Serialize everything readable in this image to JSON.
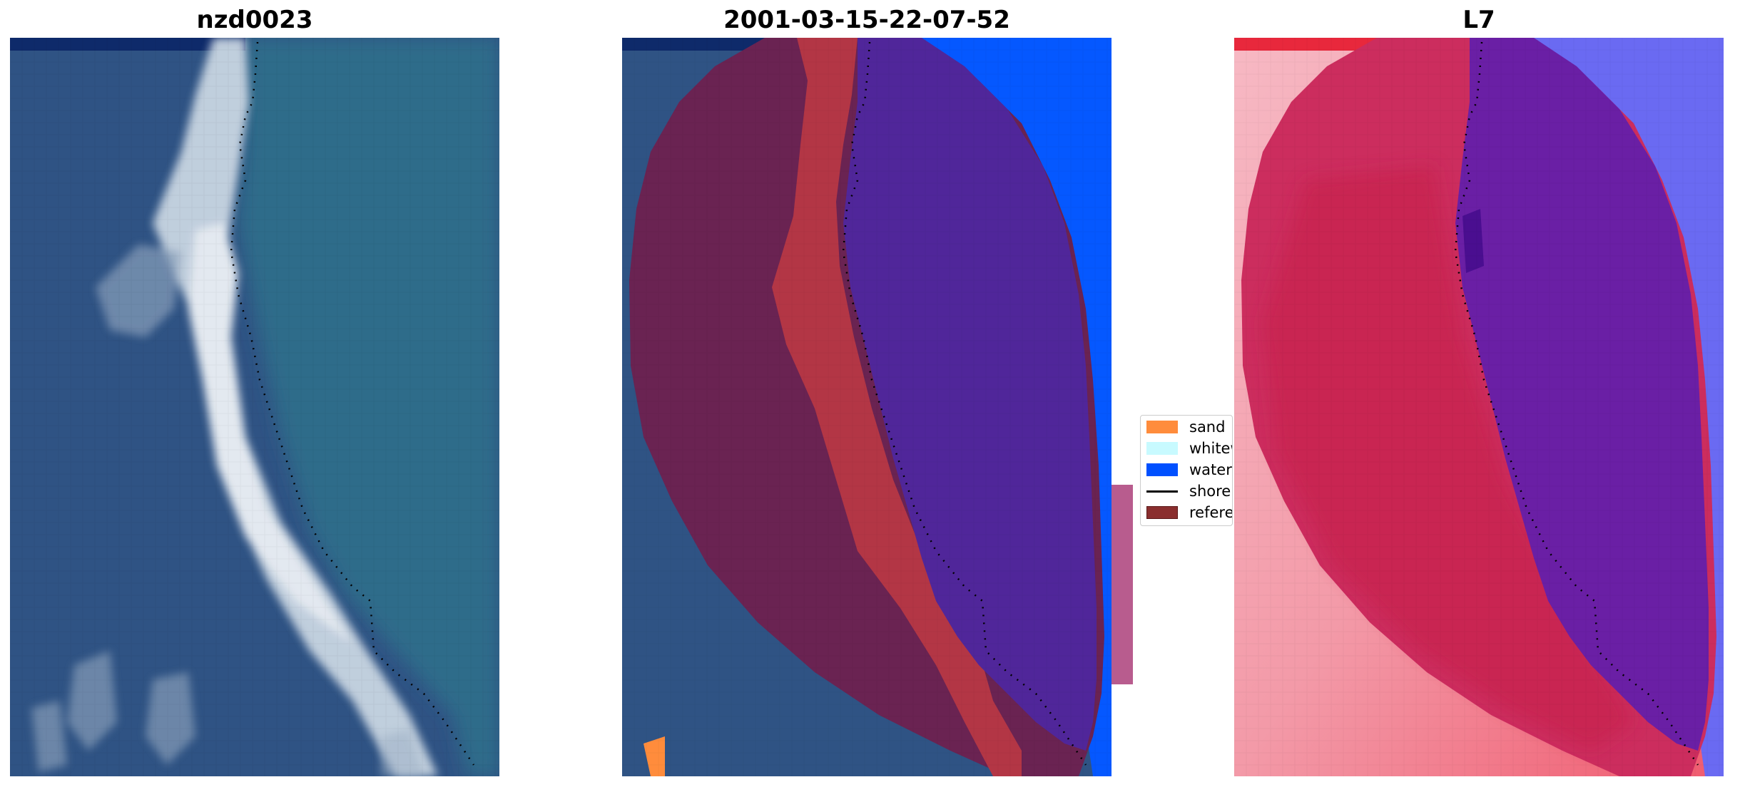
{
  "panels": [
    {
      "title": "nzd0023"
    },
    {
      "title": "2001-03-15-22-07-52"
    },
    {
      "title": "L7"
    }
  ],
  "legend": {
    "items": [
      {
        "label": "sand",
        "color": "#ff8c3c"
      },
      {
        "label": "whitew",
        "color": "#c8faff"
      },
      {
        "label": "water",
        "color": "#0050ff"
      },
      {
        "label": "shorel",
        "color": "#000000",
        "kind": "line"
      },
      {
        "label": "referen",
        "color": "#8a2e2e"
      }
    ]
  },
  "colors": {
    "rgb_background": "#2f5384",
    "rgb_sea": "#2f6c8a",
    "rgb_surf": "#dfe8f0",
    "class_sand_overlay": "#6a2352",
    "class_whitewater": "#b33645",
    "class_water_body": "#50269a",
    "class_water_outside": "#0558ff",
    "mndwi_land": "#f6a9b8",
    "mndwi_mid": "#cc2d5e",
    "mndwi_water": "#6a1fa5",
    "mndwi_outside_water": "#6a6af2"
  }
}
